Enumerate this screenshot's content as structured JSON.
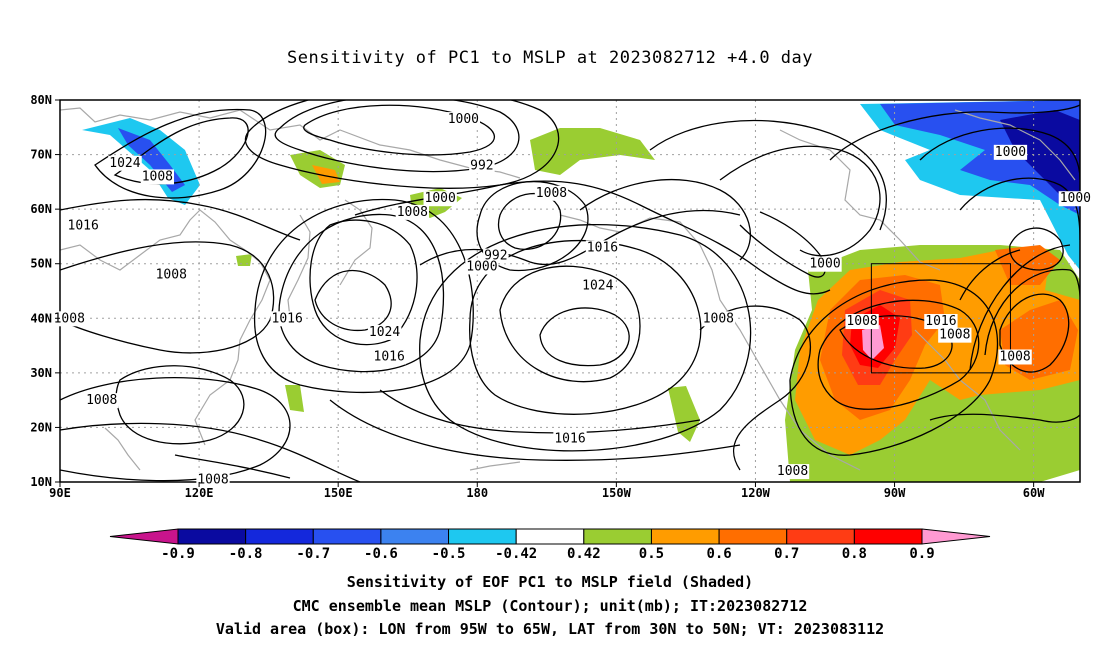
{
  "title": "Sensitivity of PC1 to MSLP at 2023082712 +4.0 day",
  "lat_ticks": [
    "80N",
    "70N",
    "60N",
    "50N",
    "40N",
    "30N",
    "20N",
    "10N"
  ],
  "lon_ticks": [
    "90E",
    "120E",
    "150E",
    "180",
    "150W",
    "120W",
    "90W",
    "60W"
  ],
  "contour_labels": [
    {
      "text": "1000",
      "lon": 177,
      "lat": 76.5
    },
    {
      "text": "992",
      "lon": 181,
      "lat": 68
    },
    {
      "text": "1024",
      "lon": 104,
      "lat": 68.5
    },
    {
      "text": "1008",
      "lon": 111,
      "lat": 66
    },
    {
      "text": "1016",
      "lon": 95,
      "lat": 57
    },
    {
      "text": "1000",
      "lon": 172,
      "lat": 62
    },
    {
      "text": "1008",
      "lon": 166,
      "lat": 59.5
    },
    {
      "text": "1008",
      "lon": -164,
      "lat": 63
    },
    {
      "text": "992",
      "lon": -176,
      "lat": 51.5
    },
    {
      "text": "1000",
      "lon": -179,
      "lat": 49.5
    },
    {
      "text": "1016",
      "lon": -153,
      "lat": 53
    },
    {
      "text": "1024",
      "lon": -154,
      "lat": 46
    },
    {
      "text": "1008",
      "lon": 114,
      "lat": 48
    },
    {
      "text": "1008",
      "lon": 92,
      "lat": 40
    },
    {
      "text": "1016",
      "lon": 139,
      "lat": 40
    },
    {
      "text": "1024",
      "lon": 160,
      "lat": 37.5
    },
    {
      "text": "1016",
      "lon": 161,
      "lat": 33
    },
    {
      "text": "1008",
      "lon": 99,
      "lat": 25
    },
    {
      "text": "1008",
      "lon": -128,
      "lat": 40
    },
    {
      "text": "1000",
      "lon": -105,
      "lat": 50
    },
    {
      "text": "1008",
      "lon": -97,
      "lat": 39.5
    },
    {
      "text": "1016",
      "lon": -80,
      "lat": 39.5
    },
    {
      "text": "1008",
      "lon": -77,
      "lat": 37
    },
    {
      "text": "1008",
      "lon": -64,
      "lat": 33
    },
    {
      "text": "1000",
      "lon": -65,
      "lat": 70.5
    },
    {
      "text": "1000",
      "lon": -51,
      "lat": 62
    },
    {
      "text": "1016",
      "lon": -160,
      "lat": 18
    },
    {
      "text": "1008",
      "lon": 123,
      "lat": 10.5
    },
    {
      "text": "1008",
      "lon": -112,
      "lat": 12
    }
  ],
  "valid_box": {
    "lon_from": -95,
    "lon_to": -65,
    "lat_from": 30,
    "lat_to": 50
  },
  "colorbar": {
    "labels": [
      "-0.9",
      "-0.8",
      "-0.7",
      "-0.6",
      "-0.5",
      "-0.42",
      "0.42",
      "0.5",
      "0.6",
      "0.7",
      "0.8",
      "0.9"
    ],
    "colors": [
      "#c8148c",
      "#0a0aa0",
      "#1428dc",
      "#2850f0",
      "#3c82f0",
      "#1ec8f0",
      "#ffffff",
      "#9acd32",
      "#ff9c00",
      "#ff6e00",
      "#ff3c14",
      "#ff0000",
      "#ff9ad2"
    ]
  },
  "footer": {
    "line1": "Sensitivity of EOF PC1 to MSLP field (Shaded)",
    "line2": "CMC ensemble mean MSLP (Contour); unit(mb); IT:2023082712",
    "line3": "Valid area (box): LON from 95W to 65W, LAT from 30N to 50N; VT: 2023083112"
  }
}
